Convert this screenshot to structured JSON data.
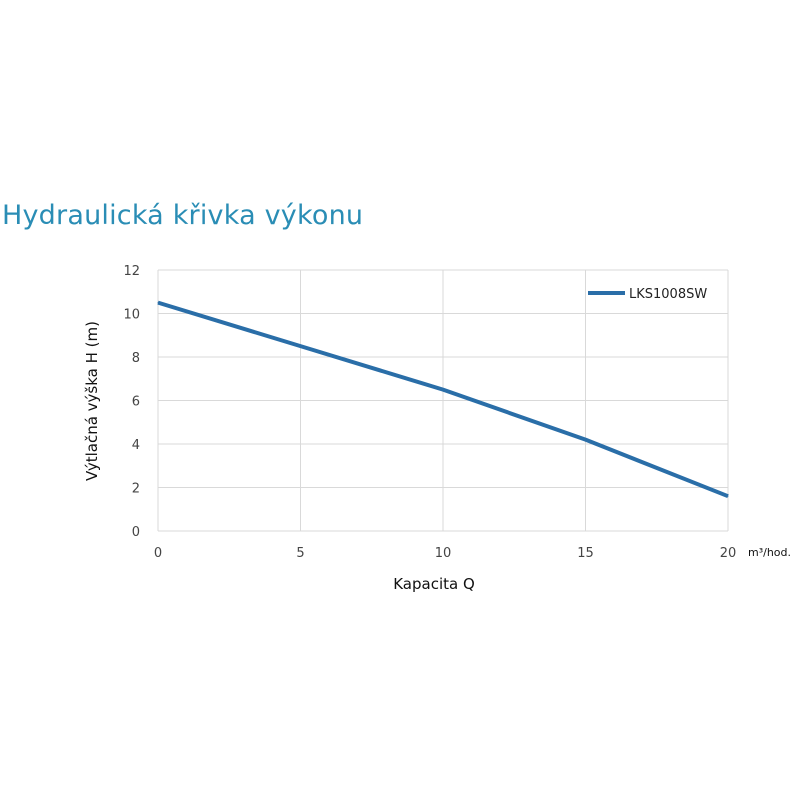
{
  "chart_data": {
    "type": "line",
    "title": "Hydraulická křivka výkonu",
    "xlabel": "Kapacita Q",
    "ylabel": "Výtlačná výška H (m)",
    "x_unit": "m³/hod.",
    "xlim": [
      0,
      20
    ],
    "ylim": [
      0,
      12
    ],
    "x_ticks": [
      0,
      5,
      10,
      15,
      20
    ],
    "y_ticks": [
      0,
      2,
      4,
      6,
      8,
      10,
      12
    ],
    "grid": true,
    "legend_position": "top-right",
    "series": [
      {
        "name": "LKS1008SW",
        "color": "#2a6ea8",
        "x": [
          0,
          5,
          10,
          15,
          20
        ],
        "y": [
          10.5,
          8.5,
          6.5,
          4.2,
          1.6
        ]
      }
    ]
  }
}
